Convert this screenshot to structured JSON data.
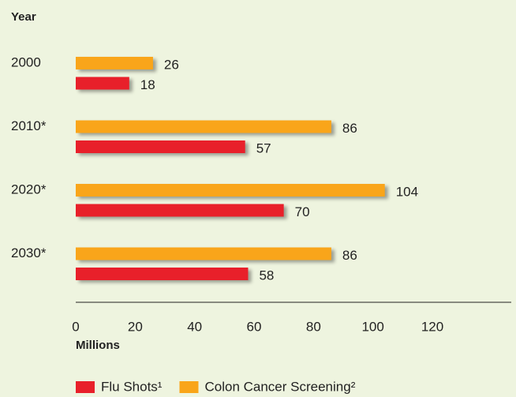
{
  "chart_data": {
    "type": "bar",
    "orientation": "horizontal",
    "y_label": "Year",
    "x_label": "Millions",
    "categories": [
      "2000",
      "2010*",
      "2020*",
      "2030*"
    ],
    "series": [
      {
        "name": "Colon Cancer Screening²",
        "color": "#f9a51a",
        "values": [
          26,
          86,
          104,
          86
        ]
      },
      {
        "name": "Flu Shots¹",
        "color": "#e8202a",
        "values": [
          18,
          57,
          70,
          58
        ]
      }
    ],
    "legend_order": [
      1,
      0
    ],
    "xlim": [
      0,
      120
    ],
    "xticks": [
      0,
      20,
      40,
      60,
      80,
      100,
      120
    ],
    "grid": false
  }
}
